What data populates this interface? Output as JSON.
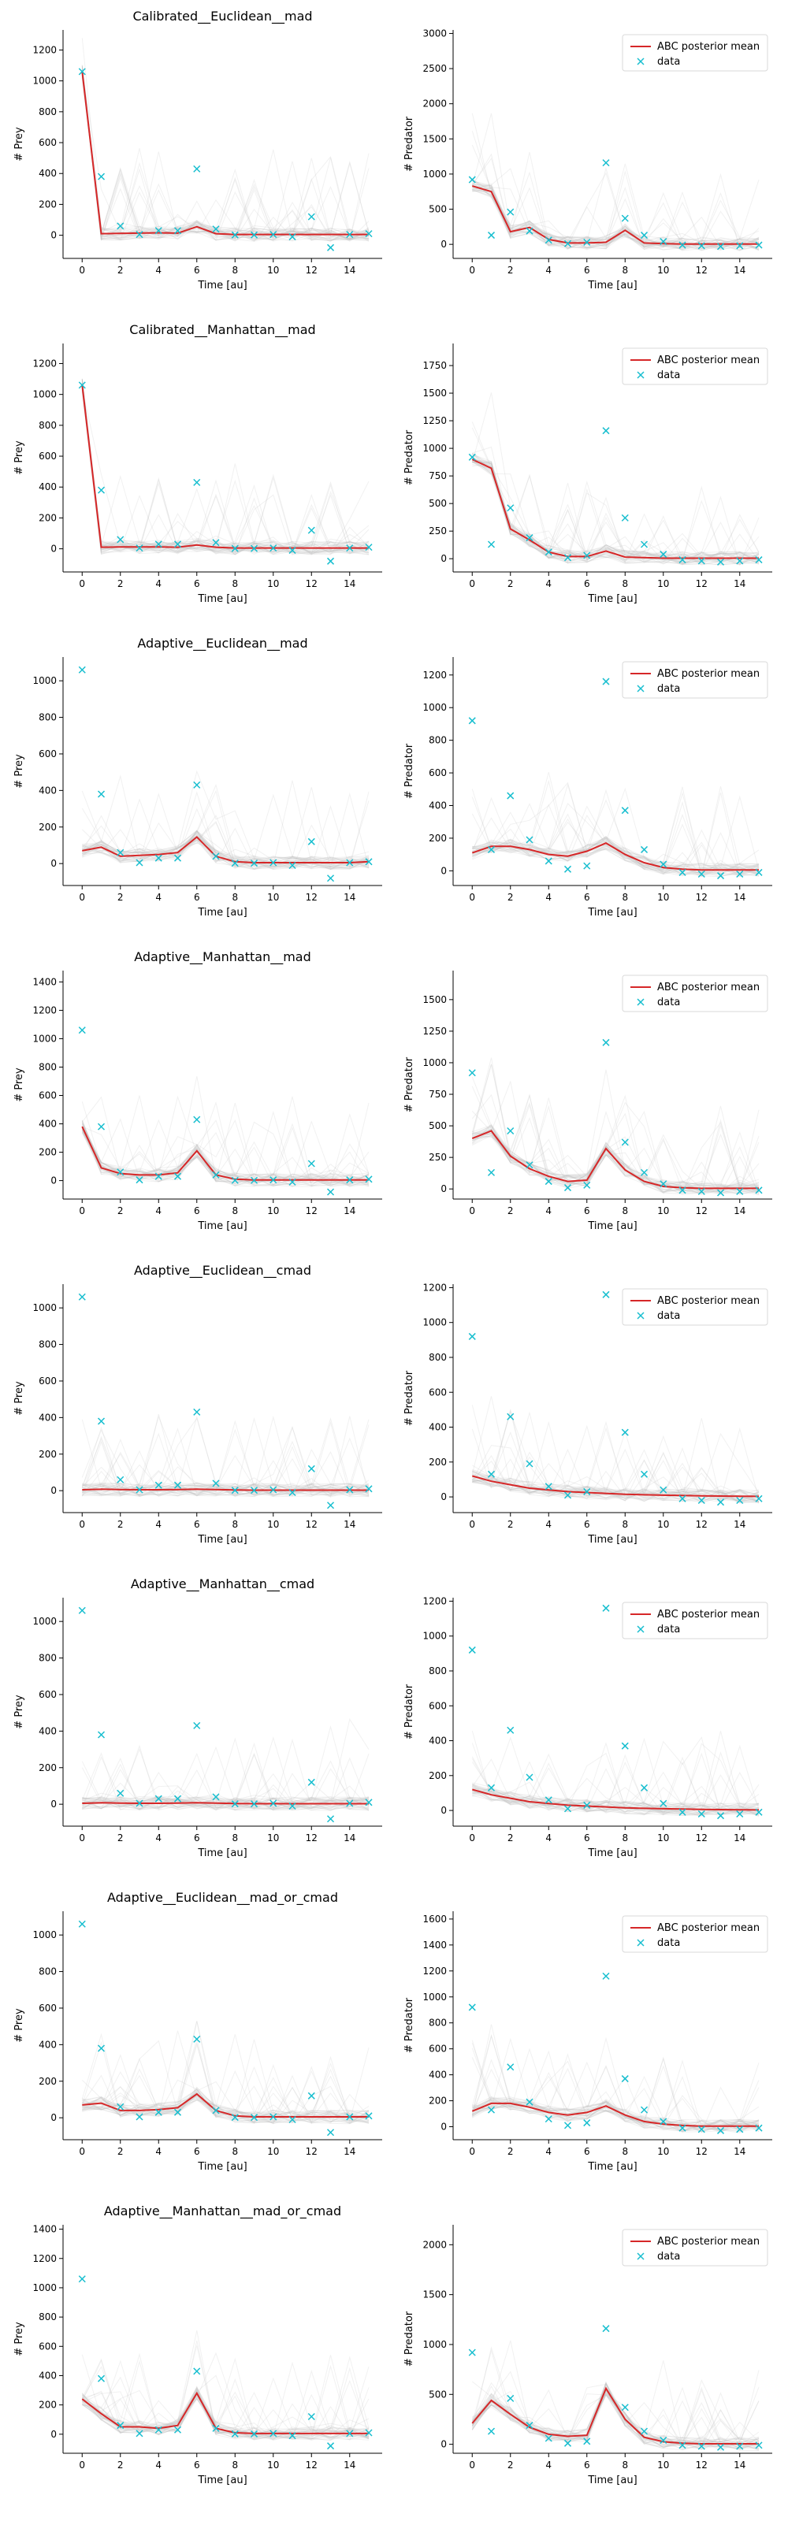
{
  "figure": {
    "xlabel": "Time [au]",
    "prey_ylabel": "# Prey",
    "predator_ylabel": "# Predator",
    "legend": {
      "line": "ABC posterior mean",
      "marker": "data"
    },
    "colors": {
      "mean": "#d62728",
      "data": "#17becf",
      "samples": "#bdbdbd"
    }
  },
  "chart_data": [
    {
      "title": "Calibrated__Euclidean__mad",
      "prey": {
        "type": "line",
        "xlim": [
          -1,
          15.7
        ],
        "ylim": [
          -150,
          1330
        ],
        "yticks": [
          0,
          200,
          400,
          600,
          800,
          1000,
          1200
        ],
        "mean": [
          1060,
          10,
          12,
          14,
          16,
          14,
          55,
          10,
          5,
          5,
          5,
          5,
          5,
          5,
          5,
          5
        ],
        "data_x": [
          0,
          1,
          2,
          3,
          4,
          5,
          6,
          7,
          8,
          9,
          10,
          11,
          12,
          13,
          14,
          15
        ],
        "data_y": [
          1060,
          380,
          60,
          5,
          30,
          30,
          430,
          40,
          2,
          2,
          5,
          -10,
          120,
          -80,
          5,
          10
        ]
      },
      "predator": {
        "type": "line",
        "xlim": [
          -1,
          15.7
        ],
        "ylim": [
          -200,
          3050
        ],
        "yticks": [
          0,
          500,
          1000,
          1500,
          2000,
          2500,
          3000
        ],
        "mean": [
          830,
          750,
          180,
          240,
          70,
          20,
          20,
          30,
          200,
          20,
          10,
          5,
          5,
          5,
          5,
          5
        ],
        "data_x": [
          0,
          1,
          2,
          3,
          4,
          5,
          6,
          7,
          8,
          9,
          10,
          11,
          12,
          13,
          14,
          15
        ],
        "data_y": [
          920,
          130,
          460,
          190,
          60,
          10,
          30,
          1160,
          370,
          130,
          40,
          -10,
          -20,
          -30,
          -20,
          -10
        ]
      }
    },
    {
      "title": "Calibrated__Manhattan__mad",
      "prey": {
        "type": "line",
        "xlim": [
          -1,
          15.7
        ],
        "ylim": [
          -150,
          1330
        ],
        "yticks": [
          0,
          200,
          400,
          600,
          800,
          1000,
          1200
        ],
        "mean": [
          1060,
          10,
          12,
          12,
          12,
          10,
          25,
          10,
          5,
          5,
          5,
          5,
          5,
          5,
          5,
          5
        ],
        "data_x": [
          0,
          1,
          2,
          3,
          4,
          5,
          6,
          7,
          8,
          9,
          10,
          11,
          12,
          13,
          14,
          15
        ],
        "data_y": [
          1060,
          380,
          60,
          5,
          30,
          30,
          430,
          40,
          2,
          2,
          5,
          -10,
          120,
          -80,
          5,
          10
        ]
      },
      "predator": {
        "type": "line",
        "xlim": [
          -1,
          15.7
        ],
        "ylim": [
          -120,
          1950
        ],
        "yticks": [
          0,
          250,
          500,
          750,
          1000,
          1250,
          1500,
          1750
        ],
        "mean": [
          900,
          820,
          270,
          170,
          60,
          20,
          20,
          70,
          15,
          10,
          5,
          5,
          5,
          5,
          5,
          5
        ],
        "data_x": [
          0,
          1,
          2,
          3,
          4,
          5,
          6,
          7,
          8,
          9,
          10,
          11,
          12,
          13,
          14,
          15
        ],
        "data_y": [
          920,
          130,
          460,
          190,
          60,
          10,
          30,
          1160,
          370,
          130,
          40,
          -10,
          -20,
          -30,
          -20,
          -10
        ]
      }
    },
    {
      "title": "Adaptive__Euclidean__mad",
      "prey": {
        "type": "line",
        "xlim": [
          -1,
          15.7
        ],
        "ylim": [
          -120,
          1130
        ],
        "yticks": [
          0,
          200,
          400,
          600,
          800,
          1000
        ],
        "mean": [
          70,
          90,
          40,
          45,
          50,
          60,
          145,
          40,
          10,
          5,
          5,
          5,
          5,
          5,
          5,
          10
        ],
        "data_x": [
          0,
          1,
          2,
          3,
          4,
          5,
          6,
          7,
          8,
          9,
          10,
          11,
          12,
          13,
          14,
          15
        ],
        "data_y": [
          1060,
          380,
          60,
          5,
          30,
          30,
          430,
          40,
          2,
          2,
          5,
          -10,
          120,
          -80,
          5,
          10
        ]
      },
      "predator": {
        "type": "line",
        "xlim": [
          -1,
          15.7
        ],
        "ylim": [
          -90,
          1310
        ],
        "yticks": [
          0,
          200,
          400,
          600,
          800,
          1000,
          1200
        ],
        "mean": [
          110,
          150,
          150,
          130,
          100,
          90,
          120,
          170,
          100,
          50,
          20,
          10,
          5,
          5,
          5,
          5
        ],
        "data_x": [
          0,
          1,
          2,
          3,
          4,
          5,
          6,
          7,
          8,
          9,
          10,
          11,
          12,
          13,
          14,
          15
        ],
        "data_y": [
          920,
          130,
          460,
          190,
          60,
          10,
          30,
          1160,
          370,
          130,
          40,
          -10,
          -20,
          -30,
          -20,
          -10
        ]
      }
    },
    {
      "title": "Adaptive__Manhattan__mad",
      "prey": {
        "type": "line",
        "xlim": [
          -1,
          15.7
        ],
        "ylim": [
          -130,
          1480
        ],
        "yticks": [
          0,
          200,
          400,
          600,
          800,
          1000,
          1200,
          1400
        ],
        "mean": [
          380,
          90,
          50,
          40,
          40,
          55,
          210,
          40,
          10,
          5,
          5,
          5,
          5,
          5,
          5,
          5
        ],
        "data_x": [
          0,
          1,
          2,
          3,
          4,
          5,
          6,
          7,
          8,
          9,
          10,
          11,
          12,
          13,
          14,
          15
        ],
        "data_y": [
          1060,
          380,
          60,
          5,
          30,
          30,
          430,
          40,
          2,
          2,
          5,
          -10,
          120,
          -80,
          5,
          10
        ]
      },
      "predator": {
        "type": "line",
        "xlim": [
          -1,
          15.7
        ],
        "ylim": [
          -80,
          1730
        ],
        "yticks": [
          0,
          250,
          500,
          750,
          1000,
          1250,
          1500
        ],
        "mean": [
          400,
          460,
          260,
          160,
          100,
          60,
          70,
          320,
          150,
          60,
          20,
          10,
          5,
          5,
          5,
          5
        ],
        "data_x": [
          0,
          1,
          2,
          3,
          4,
          5,
          6,
          7,
          8,
          9,
          10,
          11,
          12,
          13,
          14,
          15
        ],
        "data_y": [
          920,
          130,
          460,
          190,
          60,
          10,
          30,
          1160,
          370,
          130,
          40,
          -10,
          -20,
          -30,
          -20,
          -10
        ]
      }
    },
    {
      "title": "Adaptive__Euclidean__cmad",
      "prey": {
        "type": "line",
        "xlim": [
          -1,
          15.7
        ],
        "ylim": [
          -120,
          1130
        ],
        "yticks": [
          0,
          200,
          400,
          600,
          800,
          1000
        ],
        "mean": [
          5,
          8,
          6,
          5,
          5,
          6,
          8,
          6,
          4,
          3,
          3,
          3,
          3,
          3,
          3,
          3
        ],
        "data_x": [
          0,
          1,
          2,
          3,
          4,
          5,
          6,
          7,
          8,
          9,
          10,
          11,
          12,
          13,
          14,
          15
        ],
        "data_y": [
          1060,
          380,
          60,
          5,
          30,
          30,
          430,
          40,
          2,
          2,
          5,
          -10,
          120,
          -80,
          5,
          10
        ]
      },
      "predator": {
        "type": "line",
        "xlim": [
          -1,
          15.7
        ],
        "ylim": [
          -90,
          1220
        ],
        "yticks": [
          0,
          200,
          400,
          600,
          800,
          1000,
          1200
        ],
        "mean": [
          120,
          90,
          70,
          50,
          40,
          30,
          25,
          20,
          15,
          12,
          10,
          8,
          6,
          5,
          4,
          3
        ],
        "data_x": [
          0,
          1,
          2,
          3,
          4,
          5,
          6,
          7,
          8,
          9,
          10,
          11,
          12,
          13,
          14,
          15
        ],
        "data_y": [
          920,
          130,
          460,
          190,
          60,
          10,
          30,
          1160,
          370,
          130,
          40,
          -10,
          -20,
          -30,
          -20,
          -10
        ]
      }
    },
    {
      "title": "Adaptive__Manhattan__cmad",
      "prey": {
        "type": "line",
        "xlim": [
          -1,
          15.7
        ],
        "ylim": [
          -120,
          1130
        ],
        "yticks": [
          0,
          200,
          400,
          600,
          800,
          1000
        ],
        "mean": [
          5,
          8,
          6,
          5,
          5,
          6,
          8,
          6,
          4,
          3,
          3,
          3,
          3,
          3,
          3,
          3
        ],
        "data_x": [
          0,
          1,
          2,
          3,
          4,
          5,
          6,
          7,
          8,
          9,
          10,
          11,
          12,
          13,
          14,
          15
        ],
        "data_y": [
          1060,
          380,
          60,
          5,
          30,
          30,
          430,
          40,
          2,
          2,
          5,
          -10,
          120,
          -80,
          5,
          10
        ]
      },
      "predator": {
        "type": "line",
        "xlim": [
          -1,
          15.7
        ],
        "ylim": [
          -90,
          1220
        ],
        "yticks": [
          0,
          200,
          400,
          600,
          800,
          1000,
          1200
        ],
        "mean": [
          120,
          90,
          70,
          50,
          40,
          30,
          25,
          20,
          15,
          12,
          10,
          8,
          6,
          5,
          4,
          3
        ],
        "data_x": [
          0,
          1,
          2,
          3,
          4,
          5,
          6,
          7,
          8,
          9,
          10,
          11,
          12,
          13,
          14,
          15
        ],
        "data_y": [
          920,
          130,
          460,
          190,
          60,
          10,
          30,
          1160,
          370,
          130,
          40,
          -10,
          -20,
          -30,
          -20,
          -10
        ]
      }
    },
    {
      "title": "Adaptive__Euclidean__mad_or_cmad",
      "prey": {
        "type": "line",
        "xlim": [
          -1,
          15.7
        ],
        "ylim": [
          -120,
          1130
        ],
        "yticks": [
          0,
          200,
          400,
          600,
          800,
          1000
        ],
        "mean": [
          70,
          80,
          40,
          40,
          45,
          55,
          130,
          40,
          10,
          5,
          5,
          5,
          5,
          5,
          5,
          5
        ],
        "data_x": [
          0,
          1,
          2,
          3,
          4,
          5,
          6,
          7,
          8,
          9,
          10,
          11,
          12,
          13,
          14,
          15
        ],
        "data_y": [
          1060,
          380,
          60,
          5,
          30,
          30,
          430,
          40,
          2,
          2,
          5,
          -10,
          120,
          -80,
          5,
          10
        ]
      },
      "predator": {
        "type": "line",
        "xlim": [
          -1,
          15.7
        ],
        "ylim": [
          -100,
          1660
        ],
        "yticks": [
          0,
          200,
          400,
          600,
          800,
          1000,
          1200,
          1400,
          1600
        ],
        "mean": [
          120,
          180,
          180,
          150,
          110,
          90,
          110,
          160,
          90,
          40,
          20,
          10,
          5,
          5,
          5,
          5
        ],
        "data_x": [
          0,
          1,
          2,
          3,
          4,
          5,
          6,
          7,
          8,
          9,
          10,
          11,
          12,
          13,
          14,
          15
        ],
        "data_y": [
          920,
          130,
          460,
          190,
          60,
          10,
          30,
          1160,
          370,
          130,
          40,
          -10,
          -20,
          -30,
          -20,
          -10
        ]
      }
    },
    {
      "title": "Adaptive__Manhattan__mad_or_cmad",
      "prey": {
        "type": "line",
        "xlim": [
          -1,
          15.7
        ],
        "ylim": [
          -130,
          1430
        ],
        "yticks": [
          0,
          200,
          400,
          600,
          800,
          1000,
          1200,
          1400
        ],
        "mean": [
          240,
          140,
          50,
          50,
          40,
          60,
          280,
          40,
          10,
          5,
          5,
          5,
          5,
          5,
          5,
          5
        ],
        "data_x": [
          0,
          1,
          2,
          3,
          4,
          5,
          6,
          7,
          8,
          9,
          10,
          11,
          12,
          13,
          14,
          15
        ],
        "data_y": [
          1060,
          380,
          60,
          5,
          30,
          30,
          430,
          40,
          2,
          2,
          5,
          -10,
          120,
          -80,
          5,
          10
        ]
      },
      "predator": {
        "type": "line",
        "xlim": [
          -1,
          15.7
        ],
        "ylim": [
          -90,
          2200
        ],
        "yticks": [
          0,
          500,
          1000,
          1500,
          2000
        ],
        "mean": [
          210,
          440,
          300,
          170,
          100,
          80,
          90,
          560,
          250,
          70,
          25,
          10,
          5,
          5,
          5,
          5
        ],
        "data_x": [
          0,
          1,
          2,
          3,
          4,
          5,
          6,
          7,
          8,
          9,
          10,
          11,
          12,
          13,
          14,
          15
        ],
        "data_y": [
          920,
          130,
          460,
          190,
          60,
          10,
          30,
          1160,
          370,
          130,
          40,
          -10,
          -20,
          -30,
          -20,
          -10
        ]
      }
    }
  ]
}
